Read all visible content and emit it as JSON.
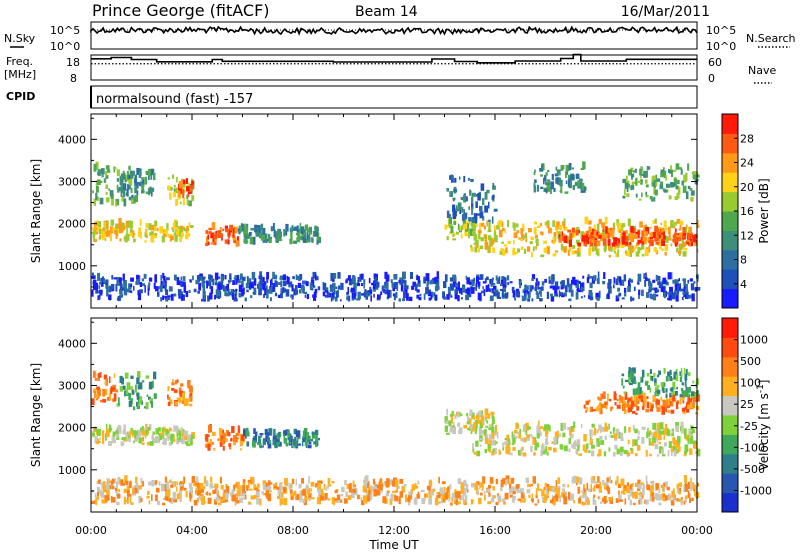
{
  "header": {
    "station": "Prince George (fitACF)",
    "beam": "Beam 14",
    "date": "16/Mar/2011",
    "cpid_label": "CPID",
    "cpid_text": "normalsound (fast) -157"
  },
  "top_panels": {
    "nsky_label": "N.Sky",
    "nsearch_label": "N.Search",
    "noise_ticks": [
      "10^5",
      "10^0"
    ],
    "freq_label_line1": "Freq.",
    "freq_label_line2": "[MHz]",
    "freq_ticks": [
      "18",
      "8"
    ],
    "nave_label": "Nave",
    "nave_ticks": [
      "60",
      "0"
    ],
    "freq_ylim": [
      8,
      18
    ],
    "freq_steps": [
      [
        0.0,
        0.8,
        16.5
      ],
      [
        0.8,
        1.6,
        17.0
      ],
      [
        1.6,
        2.6,
        16.2
      ],
      [
        2.6,
        4.8,
        15.3
      ],
      [
        4.8,
        5.2,
        16.2
      ],
      [
        5.2,
        9.6,
        15.5
      ],
      [
        9.6,
        13.5,
        15.2
      ],
      [
        13.5,
        14.4,
        16.4
      ],
      [
        14.4,
        15.3,
        15.4
      ],
      [
        15.3,
        16.8,
        14.9
      ],
      [
        16.8,
        18.6,
        15.6
      ],
      [
        18.6,
        19.1,
        16.6
      ],
      [
        19.1,
        19.4,
        18.2
      ],
      [
        19.4,
        21.2,
        15.6
      ],
      [
        21.2,
        24.0,
        16.3
      ]
    ],
    "nave_dotted_level": 0.65
  },
  "chart_data": [
    {
      "type": "heatmap",
      "panel": "power",
      "ylabel": "Slant Range [km]",
      "ylim": [
        0,
        4600
      ],
      "yticks": [
        1000,
        2000,
        3000,
        4000
      ],
      "xlim": [
        0,
        24
      ],
      "colorbar": {
        "label": "Power [dB]",
        "ticks": [
          "4",
          "8",
          "12",
          "16",
          "20",
          "24",
          "28"
        ],
        "colors": [
          "#1a1aff",
          "#1f4fb8",
          "#2c6fa0",
          "#3d8f7a",
          "#4fa84e",
          "#9acb2e",
          "#ffd21a",
          "#ff9a18",
          "#ff5a12",
          "#ff1a0a"
        ]
      },
      "echo_regions": [
        {
          "t0": 0.0,
          "t1": 1.8,
          "r0": 2400,
          "r1": 3300,
          "level": 4
        },
        {
          "t0": 1.0,
          "t1": 2.5,
          "r0": 2600,
          "r1": 3200,
          "level": 3
        },
        {
          "t0": 3.0,
          "t1": 4.0,
          "r0": 2400,
          "r1": 3100,
          "level": 5
        },
        {
          "t0": 3.4,
          "t1": 4.0,
          "r0": 2600,
          "r1": 2950,
          "level": 8
        },
        {
          "t0": 0.0,
          "t1": 4.0,
          "r0": 1550,
          "r1": 1950,
          "level": 6
        },
        {
          "t0": 4.5,
          "t1": 5.8,
          "r0": 1450,
          "r1": 1900,
          "level": 8
        },
        {
          "t0": 5.8,
          "t1": 9.0,
          "r0": 1500,
          "r1": 1850,
          "level": 3
        },
        {
          "t0": 14.0,
          "t1": 15.2,
          "r0": 1600,
          "r1": 2000,
          "level": 5
        },
        {
          "t0": 14.0,
          "t1": 16.0,
          "r0": 2000,
          "r1": 3100,
          "level": 2
        },
        {
          "t0": 15.0,
          "t1": 24.0,
          "r0": 1200,
          "r1": 2000,
          "level": 6
        },
        {
          "t0": 18.5,
          "t1": 24.0,
          "r0": 1450,
          "r1": 1800,
          "level": 8
        },
        {
          "t0": 17.5,
          "t1": 19.5,
          "r0": 2700,
          "r1": 3300,
          "level": 3
        },
        {
          "t0": 21.0,
          "t1": 24.0,
          "r0": 2500,
          "r1": 3300,
          "level": 4
        },
        {
          "t0": 0.0,
          "t1": 24.0,
          "r0": 150,
          "r1": 700,
          "level": 1
        }
      ]
    },
    {
      "type": "heatmap",
      "panel": "velocity",
      "ylabel": "Slant Range [km]",
      "ylim": [
        0,
        4600
      ],
      "yticks": [
        1000,
        2000,
        3000,
        4000
      ],
      "xlim": [
        0,
        24
      ],
      "xticks": [
        "00:00",
        "04:00",
        "08:00",
        "12:00",
        "16:00",
        "20:00",
        "00:00"
      ],
      "xlabel": "Time UT",
      "colorbar": {
        "label": "Velocity [m s^-1]",
        "ticks": [
          "1000",
          "500",
          "100",
          "25",
          "-25",
          "-100",
          "-500",
          "-1000"
        ],
        "colors": [
          "#1a30cc",
          "#2856b0",
          "#2f7f8a",
          "#3fa85a",
          "#7fd13a",
          "#c8c8c0",
          "#ffb020",
          "#ff8018",
          "#ff4a10",
          "#ff1a0a"
        ]
      },
      "echo_regions": [
        {
          "t0": 0.0,
          "t1": 1.0,
          "r0": 2500,
          "r1": 3200,
          "level": 7
        },
        {
          "t0": 1.0,
          "t1": 2.5,
          "r0": 2400,
          "r1": 3200,
          "level": 3
        },
        {
          "t0": 3.0,
          "t1": 4.0,
          "r0": 2500,
          "r1": 3100,
          "level": 7
        },
        {
          "t0": 0.0,
          "t1": 4.0,
          "r0": 1550,
          "r1": 1950,
          "level": 5
        },
        {
          "t0": 4.5,
          "t1": 6.0,
          "r0": 1450,
          "r1": 1900,
          "level": 7
        },
        {
          "t0": 6.0,
          "t1": 9.0,
          "r0": 1500,
          "r1": 1850,
          "level": 2
        },
        {
          "t0": 14.0,
          "t1": 16.0,
          "r0": 1800,
          "r1": 2300,
          "level": 5
        },
        {
          "t0": 15.0,
          "t1": 24.0,
          "r0": 1300,
          "r1": 2000,
          "level": 5
        },
        {
          "t0": 19.5,
          "t1": 24.0,
          "r0": 2300,
          "r1": 2700,
          "level": 7
        },
        {
          "t0": 21.0,
          "t1": 24.0,
          "r0": 2700,
          "r1": 3300,
          "level": 3
        },
        {
          "t0": 0.0,
          "t1": 24.0,
          "r0": 150,
          "r1": 700,
          "level": 6
        }
      ]
    }
  ]
}
